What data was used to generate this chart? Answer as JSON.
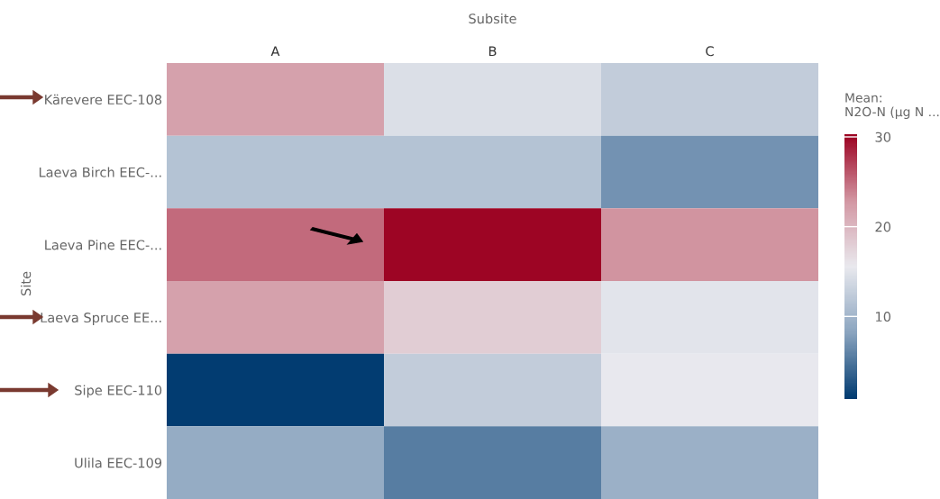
{
  "chart_data": {
    "type": "heatmap",
    "xlabel": "Subsite",
    "ylabel": "Site",
    "clabel": "Mean:\nN2O-N (µg N ...",
    "categories": [
      "A",
      "B",
      "C"
    ],
    "y_categories": [
      "Kärevere EEC-108",
      "Laeva Birch EEC-...",
      "Laeva Pine EEC-...",
      "Laeva Spruce EE...",
      "Sipe EEC-110",
      "Ulila EEC-109"
    ],
    "cells": [
      [
        22,
        14.5,
        12.5
      ],
      [
        11.5,
        11.5,
        7
      ],
      [
        25,
        30,
        23
      ],
      [
        22,
        18,
        15
      ],
      [
        1,
        12.5,
        15.5
      ],
      [
        9,
        5.5,
        9.5
      ]
    ],
    "clim": [
      0.8,
      30.3
    ],
    "cticks": [
      10,
      20,
      30
    ]
  }
}
